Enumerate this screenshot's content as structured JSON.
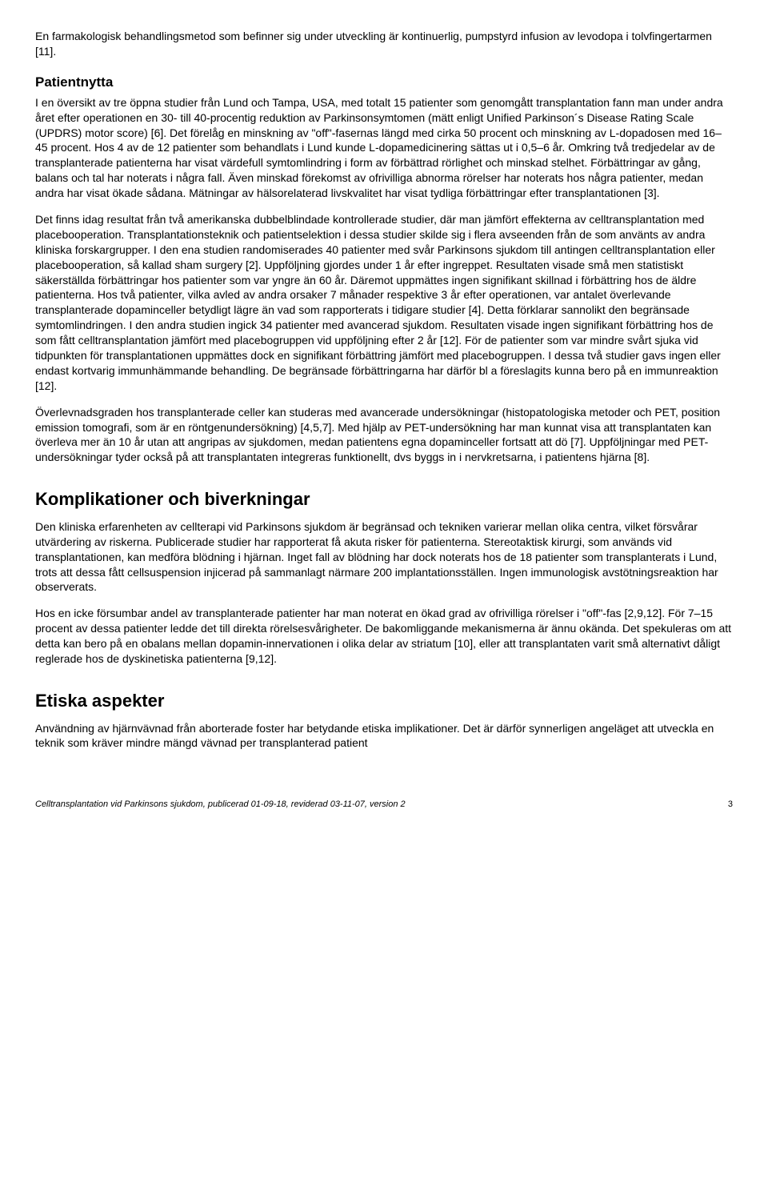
{
  "paragraphs": {
    "intro": "En farmakologisk behandlingsmetod som befinner sig under utveckling är kontinuerlig, pumpstyrd infusion av levodopa i tolvfingertarmen [11].",
    "patientnytta_heading": "Patientnytta",
    "p1": "I en översikt av tre öppna studier från Lund och Tampa, USA, med totalt 15 patienter som genomgått transplantation fann man under andra året efter operationen en 30- till 40-procentig reduktion av Parkinsonsymtomen (mätt enligt Unified Parkinson´s Disease Rating Scale (UPDRS) motor score) [6]. Det förelåg en minskning av \"off\"-fasernas längd med cirka 50 procent och minskning av L-dopadosen med 16–45 procent. Hos 4 av de 12 patienter som behandlats i Lund kunde L-dopamedicinering sättas ut i 0,5–6 år. Omkring två tredjedelar av de transplanterade patienterna har visat värdefull symtomlindring i form av förbättrad rörlighet och minskad stelhet. Förbättringar av gång, balans och tal har noterats i några fall. Även minskad förekomst av ofrivilliga abnorma rörelser har noterats hos några patienter, medan andra har visat ökade sådana. Mätningar av hälsorelaterad livskvalitet har visat tydliga förbättringar efter transplantationen [3].",
    "p2": "Det finns idag resultat från två amerikanska dubbelblindade kontrollerade studier, där man jämfört effekterna av celltransplantation med placebooperation. Transplantationsteknik och patientselektion i dessa studier skilde sig i flera avseenden från de som använts av andra kliniska forskargrupper. I den ena studien randomiserades 40 patienter med svår Parkinsons sjukdom till antingen celltransplantation eller placebooperation, så kallad sham surgery [2]. Uppföljning gjordes under 1 år efter ingreppet. Resultaten visade små men statistiskt säkerställda förbättringar hos patienter som var yngre än 60 år. Däremot uppmättes ingen signifikant skillnad i förbättring hos de äldre patienterna. Hos två patienter, vilka avled av andra orsaker 7 månader respektive 3 år efter operationen, var antalet överlevande transplanterade dopaminceller betydligt lägre än vad som rapporterats i tidigare studier [4]. Detta förklarar sannolikt den begränsade symtomlindringen. I den andra studien ingick 34 patienter med avancerad sjukdom. Resultaten visade ingen signifikant förbättring hos de som fått celltransplantation jämfört med placebogruppen vid uppföljning efter 2 år [12]. För de patienter som var mindre svårt sjuka vid tidpunkten för transplantationen uppmättes dock en signifikant förbättring jämfört med placebogruppen. I dessa två studier gavs ingen eller endast kortvarig immunhämmande behandling. De begränsade förbättringarna har därför bl a föreslagits kunna bero på en immunreaktion [12].",
    "p3": "Överlevnadsgraden hos transplanterade celler kan studeras med avancerade undersökningar (histopatologiska metoder och PET, position emission tomografi, som är en röntgenundersökning) [4,5,7]. Med hjälp av PET-undersökning har man kunnat visa att transplantaten kan överleva mer än 10 år utan att angripas av sjukdomen, medan patientens egna dopaminceller fortsatt att dö [7]. Uppföljningar med PET-undersökningar tyder också på att transplantaten integreras funktionellt, dvs byggs in i nervkretsarna, i patientens hjärna [8].",
    "komplikationer_heading": "Komplikationer och biverkningar",
    "p4": "Den kliniska erfarenheten av cellterapi vid Parkinsons sjukdom är begränsad och tekniken varierar mellan olika centra, vilket försvårar utvärdering av riskerna. Publicerade studier har rapporterat få akuta risker för patienterna. Stereotaktisk kirurgi, som används vid transplantationen, kan medföra blödning i hjärnan. Inget fall av blödning har dock noterats hos de 18 patienter som transplanterats i Lund, trots att dessa fått cellsuspension injicerad på sammanlagt närmare 200 implantationsställen. Ingen immunologisk avstötningsreaktion har observerats.",
    "p5": "Hos en icke försumbar andel av transplanterade patienter har man noterat en ökad grad av ofrivilliga rörelser i \"off\"-fas [2,9,12]. För 7–15 procent av dessa patienter ledde det till direkta rörelsesvårigheter. De bakomliggande mekanismerna är ännu okända. Det spekuleras om att detta kan bero på en obalans mellan dopamin-innervationen i olika delar av striatum [10], eller att transplantaten varit små alternativt dåligt reglerade hos de dyskinetiska patienterna [9,12].",
    "etiska_heading": "Etiska aspekter",
    "p6": "Användning av hjärnvävnad från aborterade foster har betydande etiska implikationer. Det är därför synnerligen angeläget att utveckla en teknik som kräver mindre mängd vävnad per transplanterad patient"
  },
  "footer": {
    "left": "Celltransplantation vid Parkinsons sjukdom, publicerad 01-09-18, reviderad 03-11-07, version 2",
    "page": "3"
  }
}
